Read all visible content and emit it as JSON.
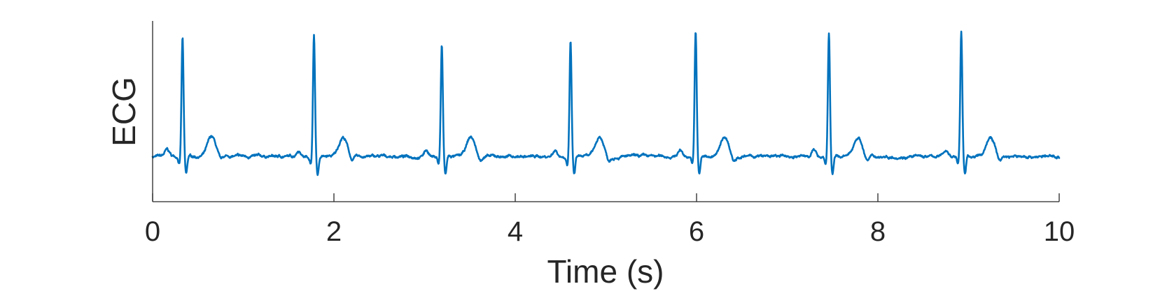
{
  "chart_data": {
    "type": "line",
    "title": "",
    "xlabel": "Time (s)",
    "ylabel": "ECG",
    "xlim": [
      0,
      10
    ],
    "ylim": [
      -0.35,
      1.05
    ],
    "x_ticks": [
      0,
      2,
      4,
      6,
      8,
      10
    ],
    "x_tick_labels": [
      "0",
      "2",
      "4",
      "6",
      "8",
      "10"
    ],
    "y_ticks_shown": false,
    "grid": false,
    "legend": "none",
    "sample_rate_hz": 250,
    "baseline": 0,
    "r_peak_times": [
      0.33,
      1.78,
      3.19,
      4.61,
      5.99,
      7.46,
      8.92
    ],
    "r_peak_values": [
      0.92,
      0.94,
      0.86,
      0.89,
      0.97,
      0.96,
      0.97
    ],
    "p_wave_amplitude": 0.05,
    "q_wave_amplitude": -0.06,
    "s_wave_amplitude": -0.14,
    "t_wave_amplitude": 0.15,
    "t_wave_offset_s": 0.32,
    "series": [
      {
        "color": "#0072BD"
      }
    ]
  }
}
